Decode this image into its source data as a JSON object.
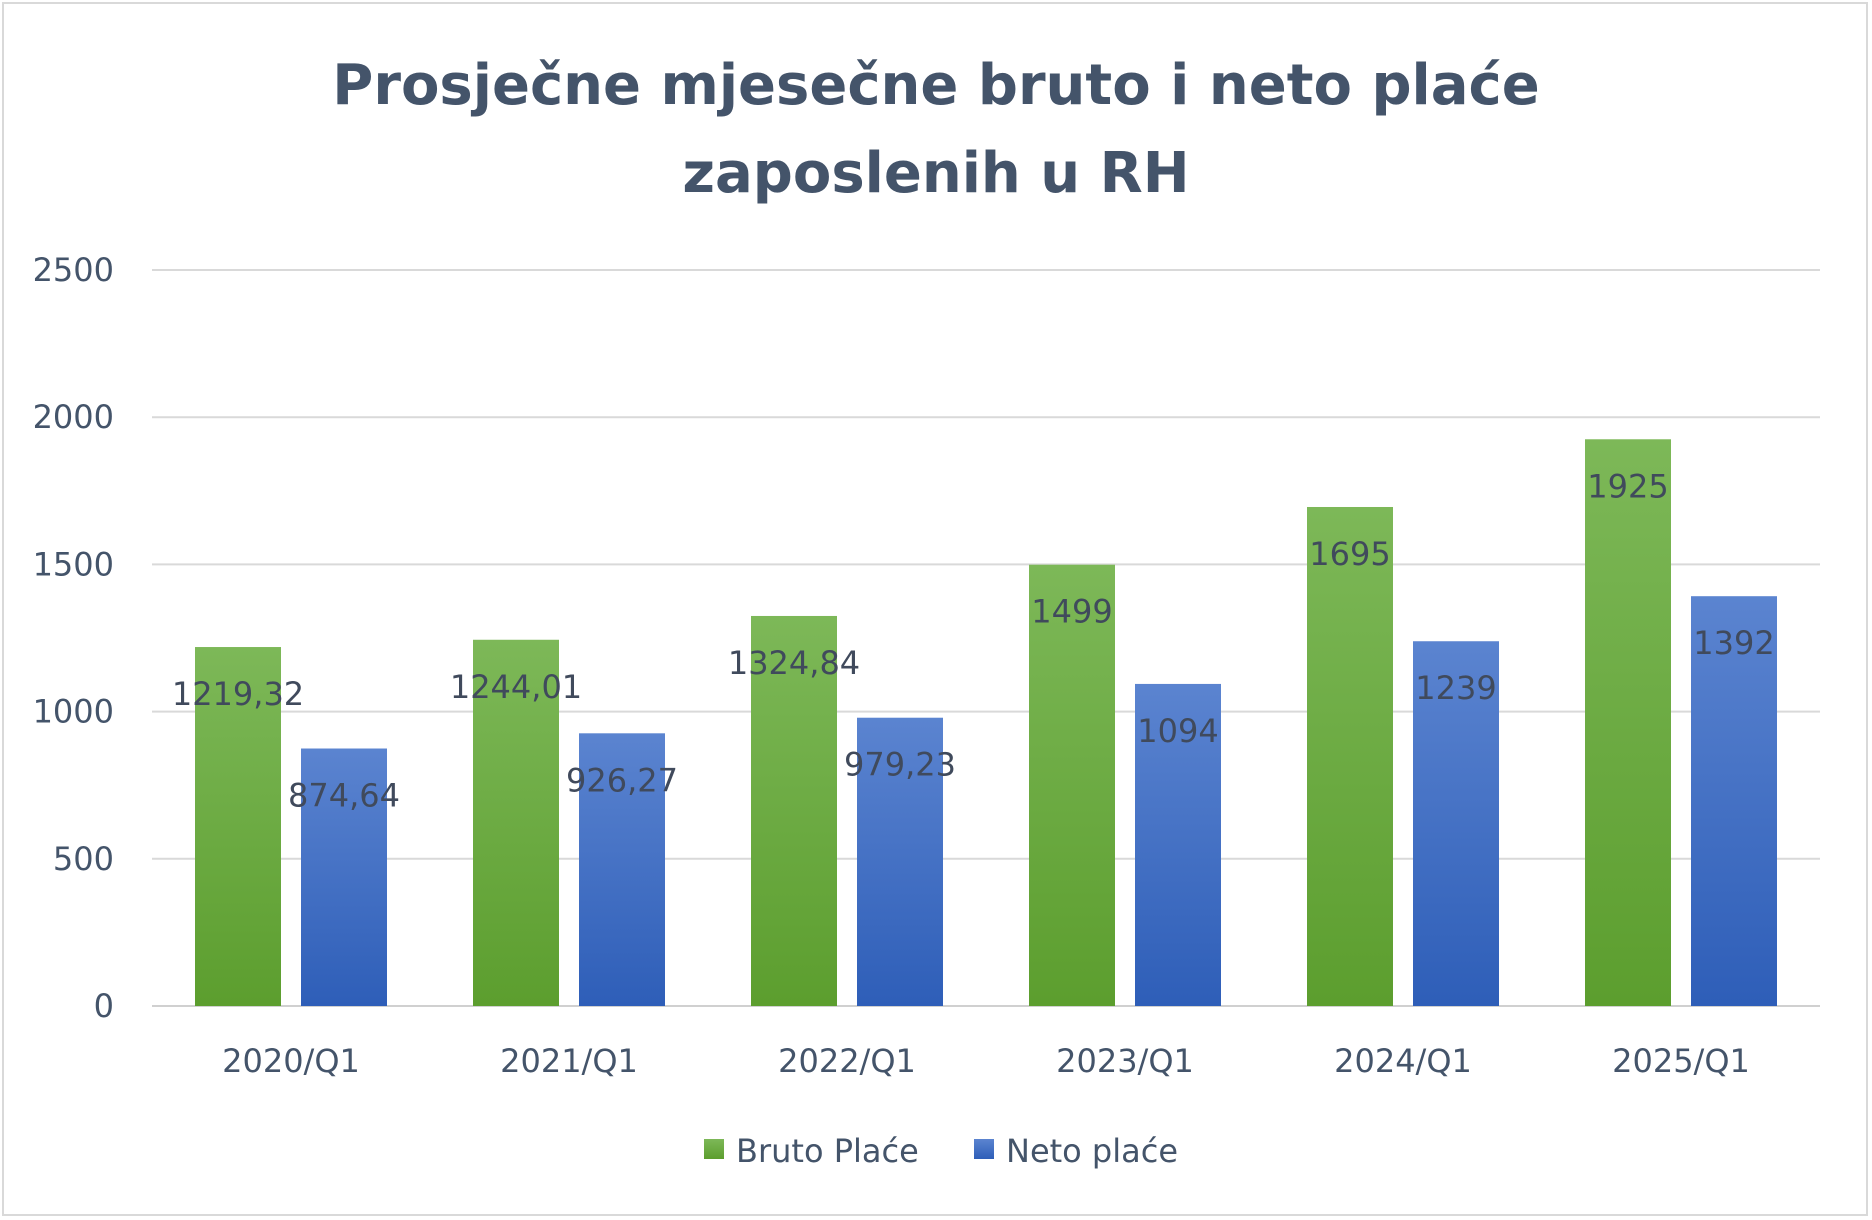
{
  "chart_data": {
    "type": "bar",
    "title": [
      "Prosječne mjesečne bruto i neto plaće",
      "zaposlenih u RH"
    ],
    "categories": [
      "2020/Q1",
      "2021/Q1",
      "2022/Q1",
      "2023/Q1",
      "2024/Q1",
      "2025/Q1"
    ],
    "series": [
      {
        "name": "Bruto Plaće",
        "values": [
          1219.32,
          1244.01,
          1324.84,
          1499,
          1695,
          1925
        ],
        "labels": [
          "1219,32",
          "1244,01",
          "1324,84",
          "1499",
          "1695",
          "1925"
        ],
        "color_top": "#7db858",
        "color_bottom": "#5c9e2e"
      },
      {
        "name": "Neto plaće",
        "values": [
          874.64,
          926.27,
          979.23,
          1094,
          1239,
          1392
        ],
        "labels": [
          "874,64",
          "926,27",
          "979,23",
          "1094",
          "1239",
          "1392"
        ],
        "color_top": "#5b84d0",
        "color_bottom": "#2e5eb8"
      }
    ],
    "ylim": [
      0,
      2500
    ],
    "yticks": [
      "0",
      "500",
      "1000",
      "1500",
      "2000",
      "2500"
    ],
    "ytick_values": [
      0,
      500,
      1000,
      1500,
      2000,
      2500
    ],
    "grid": true,
    "legend_position": "bottom",
    "xlabel": "",
    "ylabel": ""
  }
}
